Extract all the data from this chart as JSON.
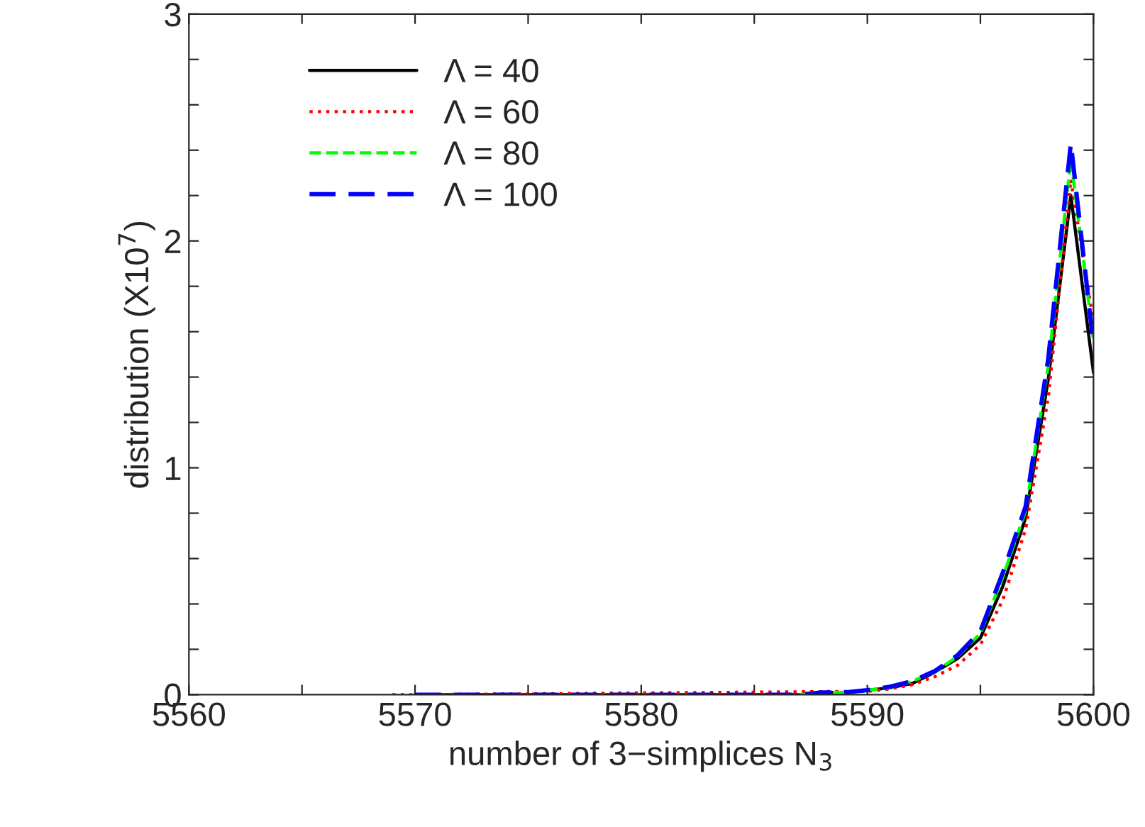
{
  "chart_data": {
    "type": "line",
    "xlabel": "number of 3−simplices N$_{3}$",
    "ylabel": "distribution (X10$^{7}$)",
    "x": [
      5569,
      5570,
      5571,
      5572,
      5573,
      5574,
      5575,
      5576,
      5577,
      5578,
      5579,
      5580,
      5581,
      5582,
      5583,
      5584,
      5585,
      5586,
      5587,
      5588,
      5589,
      5590,
      5591,
      5592,
      5593,
      5594,
      5595,
      5596,
      5597,
      5598,
      5599,
      5600
    ],
    "series": [
      {
        "name": "Λ = 40",
        "color": "#000000",
        "line_style": "solid",
        "values": [
          null,
          0,
          0,
          0,
          0,
          0,
          0,
          0,
          0,
          0,
          0,
          0,
          0,
          0,
          0,
          0,
          0,
          0,
          0,
          0.01,
          0.01,
          0.02,
          0.03,
          0.05,
          0.1,
          0.16,
          0.25,
          0.48,
          0.78,
          1.39,
          2.2,
          1.42
        ]
      },
      {
        "name": "Λ = 60",
        "color": "#ff0000",
        "line_style": "dotted",
        "values": [
          0,
          0,
          null,
          null,
          null,
          null,
          null,
          null,
          null,
          null,
          null,
          null,
          null,
          null,
          null,
          null,
          null,
          null,
          null,
          null,
          null,
          0.015,
          0.025,
          0.045,
          0.08,
          0.13,
          0.22,
          0.42,
          0.73,
          1.31,
          2.27,
          1.64
        ]
      },
      {
        "name": "Λ = 80",
        "color": "#00ff00",
        "line_style": "dashed",
        "values": [
          null,
          null,
          null,
          null,
          null,
          null,
          null,
          null,
          null,
          null,
          null,
          null,
          null,
          null,
          null,
          null,
          null,
          null,
          0,
          0.01,
          0.01,
          0.02,
          0.03,
          0.06,
          0.1,
          0.17,
          0.27,
          0.52,
          0.81,
          1.45,
          2.36,
          1.56
        ]
      },
      {
        "name": "Λ = 100",
        "color": "#0000ff",
        "line_style": "dashed",
        "values": [
          null,
          0,
          0,
          0,
          0,
          0,
          0,
          0,
          0,
          0,
          0,
          0,
          0,
          0,
          0,
          0,
          0,
          0,
          0,
          0.01,
          0.01,
          0.02,
          0.035,
          0.06,
          0.105,
          0.175,
          0.28,
          0.54,
          0.83,
          1.48,
          2.43,
          1.54
        ]
      }
    ],
    "xlim": [
      5560,
      5600
    ],
    "ylim": [
      0,
      3
    ],
    "xticks": [
      5560,
      {
        "value": 5565,
        "label": null
      },
      5570,
      {
        "value": 5575,
        "label": null
      },
      5580,
      {
        "value": 5585,
        "label": null
      },
      5590,
      {
        "value": 5595,
        "label": null
      },
      5600
    ],
    "yticks": [
      0,
      {
        "value": 0.2,
        "label": null
      },
      {
        "value": 0.4,
        "label": null
      },
      {
        "value": 0.6,
        "label": null
      },
      {
        "value": 0.8,
        "label": null
      },
      1,
      {
        "value": 1.2,
        "label": null
      },
      {
        "value": 1.4,
        "label": null
      },
      {
        "value": 1.6,
        "label": null
      },
      {
        "value": 1.8,
        "label": null
      },
      2,
      {
        "value": 2.2,
        "label": null
      },
      {
        "value": 2.4,
        "label": null
      },
      {
        "value": 2.6,
        "label": null
      },
      {
        "value": 2.8,
        "label": null
      },
      3
    ],
    "legend": "top left",
    "grid": false
  }
}
